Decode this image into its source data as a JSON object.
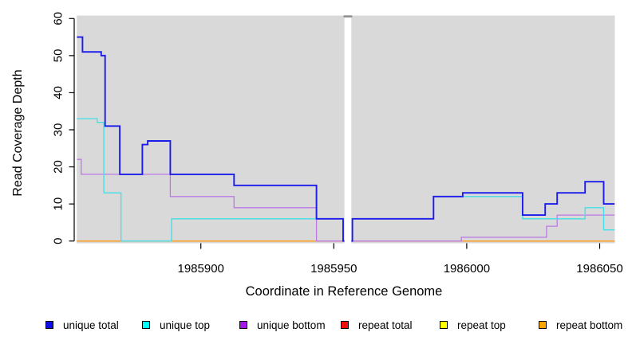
{
  "chart_data": {
    "type": "line",
    "subtype": "step",
    "title": "",
    "xlabel": "Coordinate in Reference Genome",
    "ylabel": "Read Coverage Depth",
    "xlim": [
      1985853.4,
      1986055.6
    ],
    "ylim": [
      0,
      60
    ],
    "grid": false,
    "panel_background": "#d9d9d9",
    "x_ticks": [
      {
        "value": 1985900,
        "label": "1985900"
      },
      {
        "value": 1985950,
        "label": "1985950"
      },
      {
        "value": 1986000,
        "label": "1986000"
      },
      {
        "value": 1986050,
        "label": "1986050"
      }
    ],
    "y_ticks": [
      {
        "value": 0,
        "label": "0"
      },
      {
        "value": 10,
        "label": "10"
      },
      {
        "value": 20,
        "label": "20"
      },
      {
        "value": 30,
        "label": "30"
      },
      {
        "value": 40,
        "label": "40"
      },
      {
        "value": 50,
        "label": "50"
      },
      {
        "value": 60,
        "label": "60"
      }
    ],
    "masked_region": {
      "start": 1985954.0,
      "end": 1985956.6,
      "fill": "#ffffff",
      "cap_color": "#8f8f8f"
    },
    "series": [
      {
        "name": "repeat total",
        "color": "#e60000",
        "line_width": 1.2,
        "steps": [
          [
            1985853.4,
            0
          ],
          [
            1986055.6,
            0
          ]
        ]
      },
      {
        "name": "repeat top",
        "color": "#ffff00",
        "line_width": 1.2,
        "steps": [
          [
            1985853.4,
            0
          ],
          [
            1986055.6,
            0
          ]
        ]
      },
      {
        "name": "repeat bottom",
        "color": "#ff9d1f",
        "line_width": 1.5,
        "steps": [
          [
            1985853.4,
            0
          ],
          [
            1986055.6,
            0
          ]
        ]
      },
      {
        "name": "unique bottom",
        "color": "#bd78e6",
        "line_width": 1.3,
        "steps": [
          [
            1985853.4,
            22
          ],
          [
            1985855,
            18
          ],
          [
            1985888.5,
            12
          ],
          [
            1985912.5,
            9
          ],
          [
            1985943.5,
            0
          ],
          [
            1985998,
            1
          ],
          [
            1986030,
            4
          ],
          [
            1986034,
            7
          ],
          [
            1986055.6,
            7
          ]
        ]
      },
      {
        "name": "unique top",
        "color": "#43dfe8",
        "line_width": 1.3,
        "steps": [
          [
            1985853.4,
            33
          ],
          [
            1985861,
            32
          ],
          [
            1985863.5,
            13
          ],
          [
            1985870,
            0
          ],
          [
            1985889,
            6
          ],
          [
            1985953.5,
            0
          ],
          [
            1985957,
            6
          ],
          [
            1985987.5,
            12
          ],
          [
            1986021,
            6
          ],
          [
            1986044.5,
            9
          ],
          [
            1986051.5,
            3
          ],
          [
            1986055.6,
            3
          ]
        ]
      },
      {
        "name": "unique total",
        "color": "#1b1beb",
        "line_width": 1.9,
        "steps": [
          [
            1985853.4,
            55
          ],
          [
            1985855.5,
            51
          ],
          [
            1985862.5,
            50
          ],
          [
            1985864,
            31
          ],
          [
            1985869.5,
            18
          ],
          [
            1985878,
            26
          ],
          [
            1985880,
            27
          ],
          [
            1985888.5,
            18
          ],
          [
            1985912.5,
            15
          ],
          [
            1985943.5,
            6
          ],
          [
            1985953.5,
            0
          ],
          [
            1985957,
            6
          ],
          [
            1985987.5,
            12
          ],
          [
            1985998.5,
            13
          ],
          [
            1986021,
            7
          ],
          [
            1986029.5,
            10
          ],
          [
            1986034,
            13
          ],
          [
            1986044.5,
            16
          ],
          [
            1986051.5,
            10
          ],
          [
            1986055.6,
            10
          ]
        ]
      }
    ],
    "legend": {
      "position": "bottom",
      "items": [
        {
          "label": "unique total",
          "color": "#0d0de8"
        },
        {
          "label": "unique top",
          "color": "#00ffff"
        },
        {
          "label": "unique bottom",
          "color": "#a21ae6"
        },
        {
          "label": "repeat total",
          "color": "#ee1111"
        },
        {
          "label": "repeat top",
          "color": "#ffff00"
        },
        {
          "label": "repeat bottom",
          "color": "#ffa500"
        }
      ]
    }
  }
}
